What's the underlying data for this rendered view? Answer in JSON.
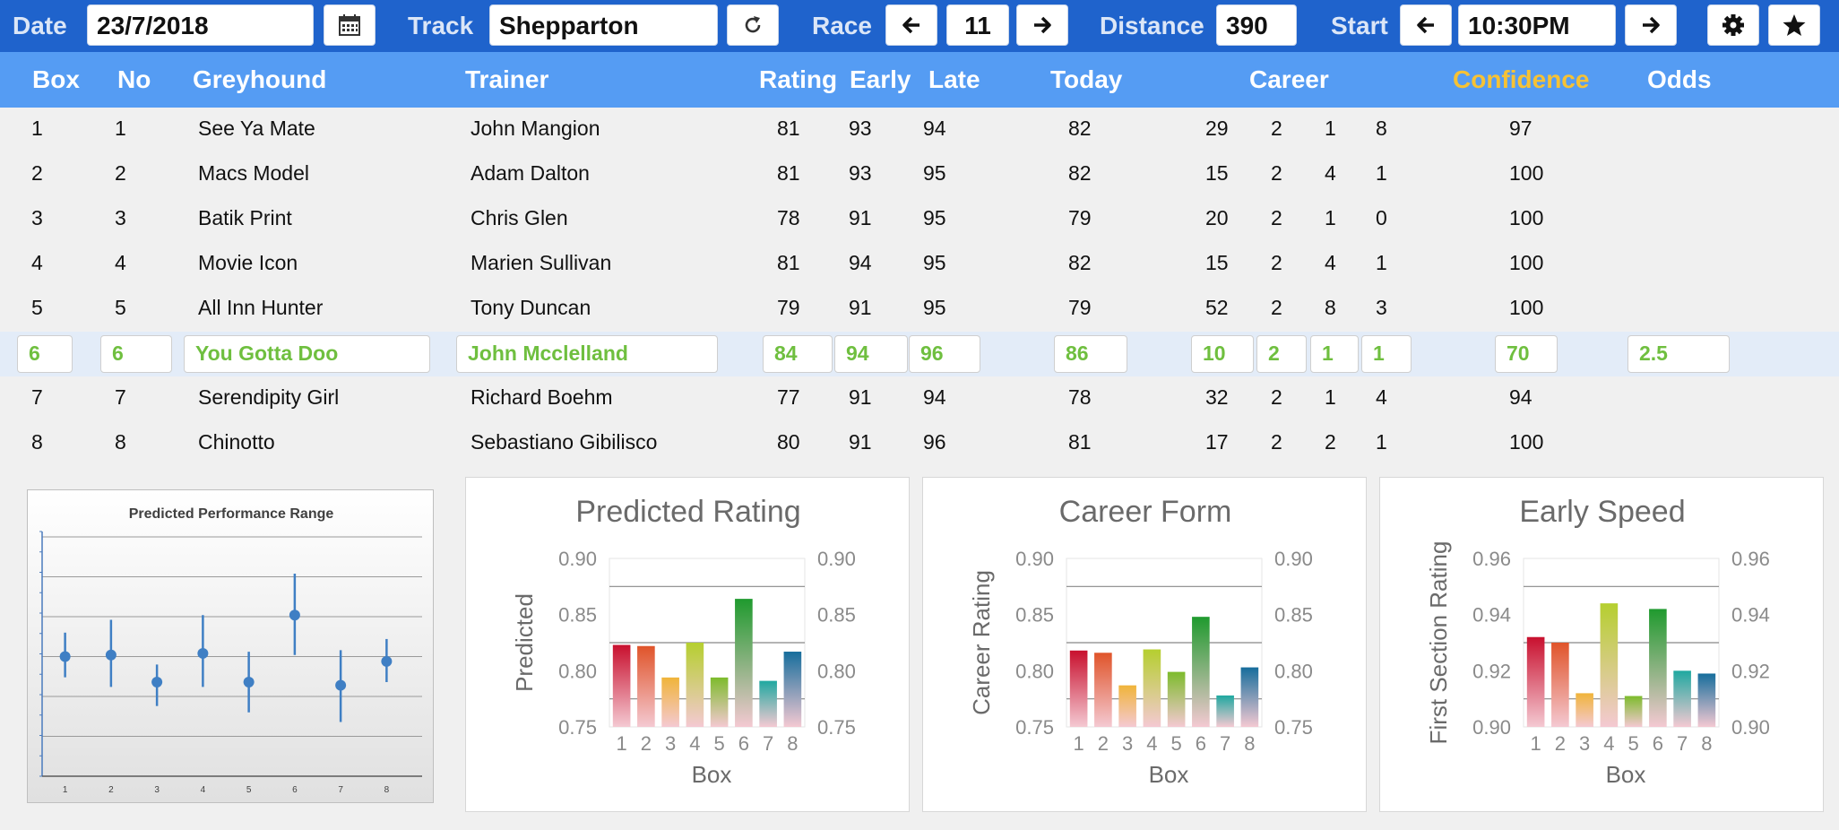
{
  "toolbar": {
    "date_label": "Date",
    "date_value": "23/7/2018",
    "track_label": "Track",
    "track_value": "Shepparton",
    "race_label": "Race",
    "race_value": "11",
    "distance_label": "Distance",
    "distance_value": "390",
    "start_label": "Start",
    "start_value": "10:30PM",
    "icons": [
      "calendar-icon",
      "refresh-icon",
      "arrow-left-icon",
      "arrow-right-icon",
      "gear-icon",
      "star-icon"
    ]
  },
  "table": {
    "headers": {
      "box": "Box",
      "no": "No",
      "greyhound": "Greyhound",
      "trainer": "Trainer",
      "rating": "Rating",
      "early": "Early",
      "late": "Late",
      "today": "Today",
      "career": "Career",
      "confidence": "Confidence",
      "odds": "Odds"
    },
    "selected_row_index": 5,
    "rows": [
      {
        "box": "1",
        "no": "1",
        "greyhound": "See Ya Mate",
        "trainer": "John Mangion",
        "rating": "81",
        "early": "93",
        "late": "94",
        "today": "82",
        "c1": "29",
        "c2": "2",
        "c3": "1",
        "c4": "8",
        "confidence": "97",
        "odds": ""
      },
      {
        "box": "2",
        "no": "2",
        "greyhound": "Macs Model",
        "trainer": "Adam Dalton",
        "rating": "81",
        "early": "93",
        "late": "95",
        "today": "82",
        "c1": "15",
        "c2": "2",
        "c3": "4",
        "c4": "1",
        "confidence": "100",
        "odds": ""
      },
      {
        "box": "3",
        "no": "3",
        "greyhound": "Batik Print",
        "trainer": "Chris Glen",
        "rating": "78",
        "early": "91",
        "late": "95",
        "today": "79",
        "c1": "20",
        "c2": "2",
        "c3": "1",
        "c4": "0",
        "confidence": "100",
        "odds": ""
      },
      {
        "box": "4",
        "no": "4",
        "greyhound": "Movie Icon",
        "trainer": "Marien Sullivan",
        "rating": "81",
        "early": "94",
        "late": "95",
        "today": "82",
        "c1": "15",
        "c2": "2",
        "c3": "4",
        "c4": "1",
        "confidence": "100",
        "odds": ""
      },
      {
        "box": "5",
        "no": "5",
        "greyhound": "All Inn Hunter",
        "trainer": "Tony Duncan",
        "rating": "79",
        "early": "91",
        "late": "95",
        "today": "79",
        "c1": "52",
        "c2": "2",
        "c3": "8",
        "c4": "3",
        "confidence": "100",
        "odds": ""
      },
      {
        "box": "6",
        "no": "6",
        "greyhound": "You Gotta Doo",
        "trainer": "John Mcclelland",
        "rating": "84",
        "early": "94",
        "late": "96",
        "today": "86",
        "c1": "10",
        "c2": "2",
        "c3": "1",
        "c4": "1",
        "confidence": "70",
        "odds": "2.5"
      },
      {
        "box": "7",
        "no": "7",
        "greyhound": "Serendipity Girl",
        "trainer": "Richard Boehm",
        "rating": "77",
        "early": "91",
        "late": "94",
        "today": "78",
        "c1": "32",
        "c2": "2",
        "c3": "1",
        "c4": "4",
        "confidence": "94",
        "odds": ""
      },
      {
        "box": "8",
        "no": "8",
        "greyhound": "Chinotto",
        "trainer": "Sebastiano Gibilisco",
        "rating": "80",
        "early": "91",
        "late": "96",
        "today": "81",
        "c1": "17",
        "c2": "2",
        "c3": "2",
        "c4": "1",
        "confidence": "100",
        "odds": ""
      }
    ]
  },
  "colors": {
    "toolbar_bg": "#1f63cc",
    "header_bg": "#559cf3",
    "confidence_header": "#f6c235",
    "selected_text": "#6fbf3f",
    "bar_gradient": [
      "#c8102e",
      "#e0542a",
      "#f0b43a",
      "#b5cf2f",
      "#7dbb2c",
      "#1f9a2e",
      "#1fa8a0",
      "#166d9c"
    ]
  },
  "chart_data": [
    {
      "type": "scatter",
      "title": "Predicted Performance Range",
      "categories": [
        "1",
        "2",
        "3",
        "4",
        "5",
        "6",
        "7",
        "8"
      ],
      "series": [
        {
          "values": [
            0.825,
            0.826,
            0.809,
            0.827,
            0.809,
            0.851,
            0.807,
            0.822
          ],
          "low": [
            0.812,
            0.806,
            0.794,
            0.806,
            0.79,
            0.826,
            0.784,
            0.809
          ],
          "high": [
            0.84,
            0.848,
            0.82,
            0.851,
            0.828,
            0.877,
            0.829,
            0.836
          ]
        }
      ],
      "ylim": [
        0.75,
        0.9
      ],
      "grid": true
    },
    {
      "type": "bar",
      "title": "Predicted Rating",
      "categories": [
        "1",
        "2",
        "3",
        "4",
        "5",
        "6",
        "7",
        "8"
      ],
      "values": [
        0.823,
        0.822,
        0.794,
        0.825,
        0.794,
        0.864,
        0.791,
        0.817
      ],
      "xlabel": "Box",
      "ylabel": "Predicted",
      "ylim": [
        0.75,
        0.9
      ],
      "yticks": [
        "0.75",
        "0.80",
        "0.85",
        "0.90"
      ],
      "grid": true
    },
    {
      "type": "bar",
      "title": "Career Form",
      "categories": [
        "1",
        "2",
        "3",
        "4",
        "5",
        "6",
        "7",
        "8"
      ],
      "values": [
        0.818,
        0.816,
        0.787,
        0.819,
        0.799,
        0.848,
        0.778,
        0.803
      ],
      "xlabel": "Box",
      "ylabel": "Career Rating",
      "ylim": [
        0.75,
        0.9
      ],
      "yticks": [
        "0.75",
        "0.80",
        "0.85",
        "0.90"
      ],
      "grid": true
    },
    {
      "type": "bar",
      "title": "Early Speed",
      "categories": [
        "1",
        "2",
        "3",
        "4",
        "5",
        "6",
        "7",
        "8"
      ],
      "values": [
        0.932,
        0.93,
        0.912,
        0.944,
        0.911,
        0.942,
        0.92,
        0.919
      ],
      "xlabel": "Box",
      "ylabel": "First Section Rating",
      "ylim": [
        0.9,
        0.96
      ],
      "yticks": [
        "0.90",
        "0.92",
        "0.94",
        "0.96"
      ],
      "grid": true
    }
  ]
}
